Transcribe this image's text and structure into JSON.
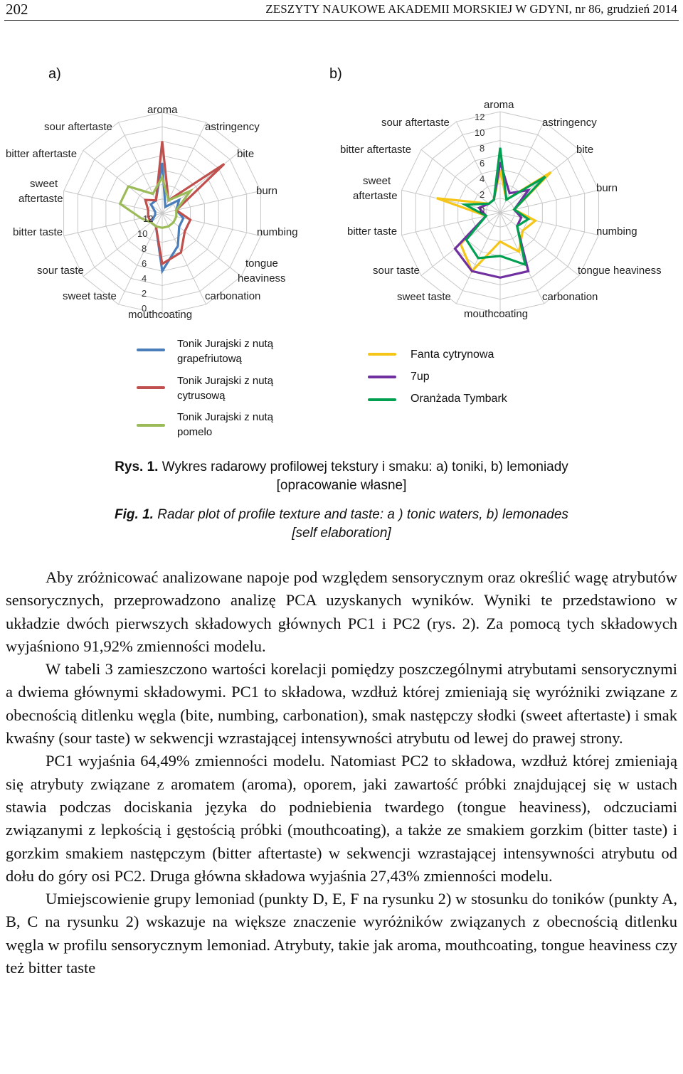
{
  "header": {
    "page_number": "202",
    "journal": "ZESZYTY NAUKOWE AKADEMII MORSKIEJ W GDYNI, nr 86, grudzień 2014"
  },
  "figure": {
    "panel_a_label": "a)",
    "panel_b_label": "b)",
    "caption_pl_bold": "Rys. 1.",
    "caption_pl_text": " Wykres radarowy profilowej tekstury i smaku: a) toniki, b) lemoniady",
    "caption_pl_line2": "[opracowanie własne]",
    "caption_en_bold": "Fig. 1.",
    "caption_en_text": " Radar plot of profile texture and taste: a ) tonic waters, b) lemonades",
    "caption_en_line2": "[self elaboration]"
  },
  "chart_data": [
    {
      "type": "radar",
      "panel": "a)",
      "axes": [
        "aroma",
        "astringency",
        "bite",
        "burn",
        "numbing",
        "tongue heaviness",
        "carbonation",
        "mouthcoating",
        "sweet taste",
        "sour taste",
        "bitter taste",
        "sweet aftertaste",
        "bitter aftertaste",
        "sour aftertaste"
      ],
      "axis_ticks": [
        "0",
        "2",
        "4",
        "6",
        "8",
        "10",
        "12"
      ],
      "rlim": [
        0,
        14
      ],
      "grid": true,
      "series": [
        {
          "name": "Tonik Jurajski z nutą grapefriutową",
          "color": "#4a7ebb",
          "values": [
            7,
            1,
            3,
            2,
            3,
            3,
            5,
            8,
            2,
            2,
            1,
            1,
            2,
            2
          ]
        },
        {
          "name": "Tonik Jurajski z nutą cytrusową",
          "color": "#c0504d",
          "values": [
            10,
            2,
            11,
            2,
            4,
            4,
            6,
            7,
            2,
            2,
            2,
            2,
            3,
            2
          ]
        },
        {
          "name": "Tonik Jurajski z nutą pomelo",
          "color": "#9bbb59",
          "values": [
            5,
            2,
            5,
            2,
            2,
            2,
            2,
            2,
            2,
            2,
            3,
            6,
            6,
            3
          ]
        }
      ]
    },
    {
      "type": "radar",
      "panel": "b)",
      "axes": [
        "aroma",
        "astringency",
        "bite",
        "burn",
        "numbing",
        "tongue heaviness",
        "carbonation",
        "mouthcoating",
        "sweet taste",
        "sour taste",
        "bitter taste",
        "sweet aftertaste",
        "bitter aftertaste",
        "sour aftertaste"
      ],
      "axis_ticks": [
        "0",
        "2",
        "4",
        "6",
        "8",
        "10",
        "12"
      ],
      "rlim": [
        0,
        14
      ],
      "grid": true,
      "series": [
        {
          "name": "Fanta cytrynowa",
          "color": "#f5c518",
          "values": [
            6,
            2,
            9,
            2,
            5,
            4,
            6,
            4,
            9,
            7,
            2,
            9,
            2,
            2
          ]
        },
        {
          "name": "7up",
          "color": "#7030a0",
          "values": [
            7,
            3,
            5,
            2,
            3,
            3,
            9,
            9,
            9,
            8,
            2,
            3,
            2,
            2
          ]
        },
        {
          "name": "Oranżada Tymbark",
          "color": "#00a050",
          "values": [
            9,
            2,
            8,
            2,
            4,
            3,
            8,
            6,
            7,
            6,
            2,
            5,
            2,
            2
          ]
        }
      ]
    }
  ],
  "legend_a": [
    {
      "line1": "Tonik  Jurajski z nutą",
      "line2": "grapefriutową",
      "color": "#4a7ebb"
    },
    {
      "line1": "Tonik Jurajski z nutą",
      "line2": "cytrusową",
      "color": "#c0504d"
    },
    {
      "line1": "Tonik Jurajski z nutą",
      "line2": "pomelo",
      "color": "#9bbb59"
    }
  ],
  "legend_b": [
    {
      "label": "Fanta cytrynowa",
      "color": "#f5c518"
    },
    {
      "label": "7up",
      "color": "#7030a0"
    },
    {
      "label": "Oranżada Tymbark",
      "color": "#00a050"
    }
  ],
  "labels_a": {
    "aroma": "aroma",
    "astringency": "astringency",
    "bite": "bite",
    "burn": "burn",
    "numbing": "numbing",
    "tongue1": "tongue",
    "tongue2": "heaviness",
    "carbonation": "carbonation",
    "mouthcoating": "mouthcoating",
    "sweet_taste": "sweet taste",
    "sour_taste": "sour taste",
    "bitter_taste": "bitter taste",
    "sweet1": "sweet",
    "sweet2": "aftertaste",
    "bitter_aftertaste": "bitter aftertaste",
    "sour_aftertaste": "sour aftertaste"
  },
  "labels_b": {
    "aroma": "aroma",
    "astringency": "astringency",
    "bite": "bite",
    "burn": "burn",
    "numbing": "numbing",
    "tongue": "tongue heaviness",
    "carbonation": "carbonation",
    "mouthcoating": "mouthcoating",
    "sweet_taste": "sweet taste",
    "sour_taste": "sour taste",
    "bitter_taste": "bitter taste",
    "sweet1": "sweet",
    "sweet2": "aftertaste",
    "bitter_aftertaste": "bitter aftertaste",
    "sour_aftertaste": "sour aftertaste"
  },
  "ticks": [
    "12",
    "10",
    "8",
    "6",
    "4",
    "2",
    "0"
  ],
  "body": {
    "p1": "Aby zróżnicować analizowane napoje pod względem sensorycznym oraz określić wagę atrybutów sensorycznych, przeprowadzono analizę PCA uzyskanych wyników. Wyniki te przedstawiono w układzie dwóch pierwszych składowych głównych PC1 i PC2 (rys. 2). Za pomocą tych składowych wyjaśniono 91,92% zmienności modelu.",
    "p2": "W tabeli 3 zamieszczono wartości korelacji pomiędzy poszczególnymi atrybutami sensorycznymi a dwiema głównymi składowymi. PC1 to składowa, wzdłuż której zmieniają się wyróżniki związane z obecnością ditlenku węgla (bite, numbing, carbonation), smak następczy słodki (sweet aftertaste) i smak kwaśny (sour taste) w sekwencji wzrastającej intensywności atrybutu od lewej do prawej strony.",
    "p3": "PC1 wyjaśnia 64,49% zmienności modelu. Natomiast PC2 to składowa, wzdłuż której zmieniają się atrybuty związane z aromatem (aroma), oporem, jaki zawartość próbki znajdującej się w ustach stawia podczas dociskania języka do podniebienia twardego (tongue heaviness), odczuciami związanymi z lepkością i gęstością próbki (mouthcoating), a także ze smakiem gorzkim (bitter taste) i gorzkim smakiem następczym (bitter aftertaste) w sekwencji wzrastającej intensywności atrybutu od dołu do góry osi PC2. Druga główna składowa wyjaśnia 27,43% zmienności modelu.",
    "p4": "Umiejscowienie grupy lemoniad (punkty D, E, F na rysunku 2) w stosunku do toników (punkty A, B, C na rysunku 2) wskazuje na większe znaczenie wyróżników związanych z obecnością ditlenku węgla w profilu sensorycznym lemoniad. Atrybuty, takie jak aroma, mouthcoating, tongue heaviness czy też bitter taste"
  }
}
